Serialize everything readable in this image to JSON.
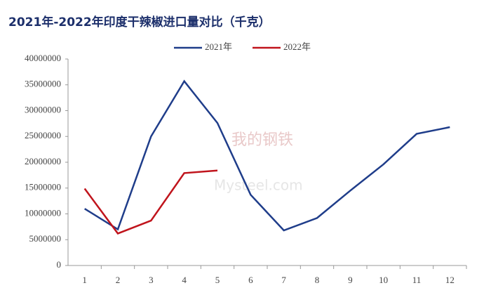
{
  "chart_data": {
    "type": "line",
    "title": "2021年-2022年印度干辣椒进口量对比（千克）",
    "categories": [
      "1",
      "2",
      "3",
      "4",
      "5",
      "6",
      "7",
      "8",
      "9",
      "10",
      "11",
      "12"
    ],
    "series": [
      {
        "name": "2021年",
        "color": "#1f3d8a",
        "values": [
          11000000,
          7000000,
          25000000,
          35700000,
          27600000,
          13700000,
          6800000,
          9200000,
          14500000,
          19600000,
          25500000,
          26800000
        ]
      },
      {
        "name": "2022年",
        "color": "#c0141c",
        "values": [
          14900000,
          6200000,
          8700000,
          17900000,
          18400000,
          null,
          null,
          null,
          null,
          null,
          null,
          null
        ]
      }
    ],
    "ylim": [
      0,
      40000000
    ],
    "yticks": [
      0,
      5000000,
      10000000,
      15000000,
      20000000,
      25000000,
      30000000,
      35000000,
      40000000
    ],
    "grid": false,
    "legend": "top",
    "watermark": [
      "我的钢铁",
      "Mysteel.com"
    ]
  }
}
